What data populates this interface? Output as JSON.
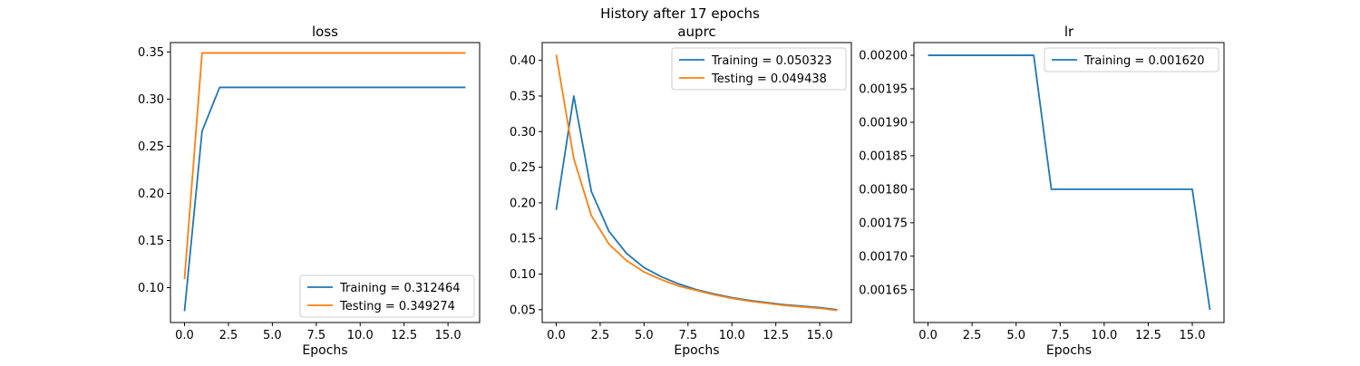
{
  "figure": {
    "suptitle": "History after 17 epochs"
  },
  "colors": {
    "training": "#1f77b4",
    "testing": "#ff7f0e"
  },
  "chart_data": [
    {
      "type": "line",
      "title": "loss",
      "xlabel": "Epochs",
      "ylabel": "",
      "xlim": [
        -0.8,
        16.8
      ],
      "ylim": [
        0.063,
        0.36
      ],
      "xticks": [
        0,
        2.5,
        5,
        7.5,
        10,
        12.5,
        15
      ],
      "xtick_labels": [
        "0.0",
        "2.5",
        "5.0",
        "7.5",
        "10.0",
        "12.5",
        "15.0"
      ],
      "yticks": [
        0.1,
        0.15,
        0.2,
        0.25,
        0.3,
        0.35
      ],
      "ytick_labels": [
        "0.10",
        "0.15",
        "0.20",
        "0.25",
        "0.30",
        "0.35"
      ],
      "legend_position": "bottom-right",
      "x": [
        0,
        1,
        2,
        3,
        4,
        5,
        6,
        7,
        8,
        9,
        10,
        11,
        12,
        13,
        14,
        15,
        16
      ],
      "series": [
        {
          "name": "Training = 0.312464",
          "color_key": "training",
          "values": [
            0.075,
            0.266,
            0.3125,
            0.3125,
            0.3125,
            0.3125,
            0.3125,
            0.3125,
            0.3125,
            0.3125,
            0.3125,
            0.3125,
            0.3125,
            0.3125,
            0.3125,
            0.3125,
            0.3125
          ]
        },
        {
          "name": "Testing = 0.349274",
          "color_key": "testing",
          "values": [
            0.109,
            0.349,
            0.349,
            0.349,
            0.349,
            0.349,
            0.349,
            0.349,
            0.349,
            0.349,
            0.349,
            0.349,
            0.349,
            0.349,
            0.349,
            0.349,
            0.349
          ]
        }
      ]
    },
    {
      "type": "line",
      "title": "auprc",
      "xlabel": "Epochs",
      "ylabel": "",
      "xlim": [
        -0.8,
        16.8
      ],
      "ylim": [
        0.032,
        0.425
      ],
      "xticks": [
        0,
        2.5,
        5,
        7.5,
        10,
        12.5,
        15
      ],
      "xtick_labels": [
        "0.0",
        "2.5",
        "5.0",
        "7.5",
        "10.0",
        "12.5",
        "15.0"
      ],
      "yticks": [
        0.05,
        0.1,
        0.15,
        0.2,
        0.25,
        0.3,
        0.35,
        0.4
      ],
      "ytick_labels": [
        "0.05",
        "0.10",
        "0.15",
        "0.20",
        "0.25",
        "0.30",
        "0.35",
        "0.40"
      ],
      "legend_position": "top-right",
      "x": [
        0,
        1,
        2,
        3,
        4,
        5,
        6,
        7,
        8,
        9,
        10,
        11,
        12,
        13,
        14,
        15,
        16
      ],
      "series": [
        {
          "name": "Training = 0.050323",
          "color_key": "training",
          "values": [
            0.19,
            0.35,
            0.216,
            0.16,
            0.129,
            0.109,
            0.096,
            0.086,
            0.078,
            0.072,
            0.067,
            0.063,
            0.06,
            0.057,
            0.055,
            0.053,
            0.05
          ]
        },
        {
          "name": "Testing = 0.049438",
          "color_key": "testing",
          "values": [
            0.408,
            0.262,
            0.182,
            0.142,
            0.119,
            0.103,
            0.092,
            0.083,
            0.077,
            0.071,
            0.066,
            0.062,
            0.059,
            0.056,
            0.054,
            0.052,
            0.049
          ]
        }
      ]
    },
    {
      "type": "line",
      "title": "lr",
      "xlabel": "Epochs",
      "ylabel": "",
      "xlim": [
        -0.8,
        16.8
      ],
      "ylim": [
        0.001601,
        0.002019
      ],
      "xticks": [
        0,
        2.5,
        5,
        7.5,
        10,
        12.5,
        15
      ],
      "xtick_labels": [
        "0.0",
        "2.5",
        "5.0",
        "7.5",
        "10.0",
        "12.5",
        "15.0"
      ],
      "yticks": [
        0.00165,
        0.0017,
        0.00175,
        0.0018,
        0.00185,
        0.0019,
        0.00195,
        0.002
      ],
      "ytick_labels": [
        "0.00165",
        "0.00170",
        "0.00175",
        "0.00180",
        "0.00185",
        "0.00190",
        "0.00195",
        "0.00200"
      ],
      "legend_position": "top-right",
      "x": [
        0,
        1,
        2,
        3,
        4,
        5,
        6,
        7,
        8,
        9,
        10,
        11,
        12,
        13,
        14,
        15,
        16
      ],
      "series": [
        {
          "name": "Training = 0.001620",
          "color_key": "training",
          "values": [
            0.002,
            0.002,
            0.002,
            0.002,
            0.002,
            0.002,
            0.002,
            0.0018,
            0.0018,
            0.0018,
            0.0018,
            0.0018,
            0.0018,
            0.0018,
            0.0018,
            0.0018,
            0.00162
          ]
        }
      ]
    }
  ]
}
